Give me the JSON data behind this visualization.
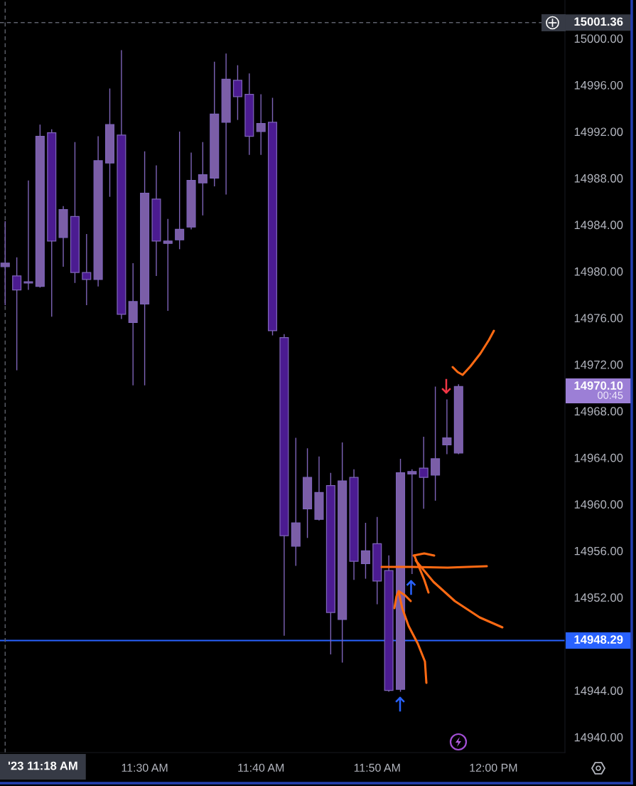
{
  "chart_data": {
    "type": "candlestick",
    "x": [
      11.3,
      11.3167,
      11.3333,
      11.35,
      11.3667,
      11.3833,
      11.4,
      11.4167,
      11.4333,
      11.45,
      11.4667,
      11.4833,
      11.5,
      11.5167,
      11.5333,
      11.55,
      11.5667,
      11.5833,
      11.6,
      11.6167,
      11.6333,
      11.65,
      11.6667,
      11.6833,
      11.7,
      11.7167,
      11.7333,
      11.75,
      11.7667,
      11.7833,
      11.8,
      11.8167,
      11.8333,
      11.85,
      11.8667,
      11.8833,
      11.9,
      11.9167,
      11.9333,
      11.95
    ],
    "ohlc": [
      [
        14980.4,
        14984.3,
        14977.1,
        14980.7
      ],
      [
        14979.6,
        14981.2,
        14971.5,
        14978.4
      ],
      [
        14979.0,
        14987.8,
        14978.4,
        14979.1
      ],
      [
        14978.7,
        14992.6,
        14978.6,
        14991.6
      ],
      [
        14991.9,
        14992.2,
        14976.1,
        14982.6
      ],
      [
        14982.9,
        14985.6,
        14980.4,
        14985.3
      ],
      [
        14984.7,
        14991.1,
        14979.0,
        14979.9
      ],
      [
        14979.9,
        14983.2,
        14977.1,
        14979.3
      ],
      [
        14979.3,
        14991.6,
        14978.7,
        14989.5
      ],
      [
        14989.3,
        14995.7,
        14986.4,
        14992.6
      ],
      [
        14991.7,
        14999.0,
        14975.9,
        14976.3
      ],
      [
        14975.6,
        14980.7,
        14970.2,
        14977.4
      ],
      [
        14977.2,
        14990.3,
        14970.2,
        14986.7
      ],
      [
        14986.2,
        14989.1,
        14979.6,
        14982.6
      ],
      [
        14982.4,
        14984.5,
        14976.6,
        14982.6
      ],
      [
        14982.7,
        14992.0,
        14981.9,
        14983.6
      ],
      [
        14983.8,
        14990.2,
        14983.6,
        14987.8
      ],
      [
        14987.6,
        14991.1,
        14984.8,
        14988.3
      ],
      [
        14988.0,
        14998.0,
        14987.3,
        14993.5
      ],
      [
        14992.8,
        14998.7,
        14986.6,
        14996.5
      ],
      [
        14996.4,
        14997.7,
        14993.0,
        14995.0
      ],
      [
        14995.2,
        14997.0,
        14990.0,
        14991.6
      ],
      [
        14992.0,
        14995.2,
        14990.0,
        14992.7
      ],
      [
        14992.8,
        14994.9,
        14974.5,
        14974.9
      ],
      [
        14974.3,
        14974.6,
        14948.7,
        14957.3
      ],
      [
        14956.4,
        14965.7,
        14954.7,
        14958.4
      ],
      [
        14959.6,
        14964.8,
        14957.1,
        14962.3
      ],
      [
        14958.7,
        14964.1,
        14958.6,
        14961.0
      ],
      [
        14961.6,
        14962.7,
        14947.1,
        14950.7
      ],
      [
        14950.1,
        14965.3,
        14946.4,
        14962.0
      ],
      [
        14962.3,
        14963.0,
        14953.5,
        14955.1
      ],
      [
        14954.9,
        14958.4,
        14953.6,
        14956.0
      ],
      [
        14956.6,
        14958.9,
        14951.4,
        14953.4
      ],
      [
        14954.3,
        14955.6,
        14943.9,
        14944.0
      ],
      [
        14944.1,
        14963.9,
        14943.9,
        14962.7
      ],
      [
        14962.6,
        14963.0,
        14954.0,
        14962.8
      ],
      [
        14963.1,
        14965.8,
        14959.6,
        14962.3
      ],
      [
        14962.5,
        14970.1,
        14960.3,
        14963.9
      ],
      [
        14965.1,
        14969.0,
        14964.3,
        14965.7
      ],
      [
        14964.4,
        14970.3,
        14964.3,
        14970.1
      ]
    ],
    "colors": [
      "#7b5ea7",
      "#4b1b91",
      "#7b5ea7",
      "#7b5ea7",
      "#4b1b91",
      "#7b5ea7",
      "#4b1b91",
      "#4b1b91",
      "#7b5ea7",
      "#7b5ea7",
      "#4b1b91",
      "#7b5ea7",
      "#7b5ea7",
      "#4b1b91",
      "#7b5ea7",
      "#7b5ea7",
      "#7b5ea7",
      "#7b5ea7",
      "#7b5ea7",
      "#7b5ea7",
      "#4b1b91",
      "#4b1b91",
      "#7b5ea7",
      "#4b1b91",
      "#4b1b91",
      "#7b5ea7",
      "#7b5ea7",
      "#7b5ea7",
      "#4b1b91",
      "#7b5ea7",
      "#4b1b91",
      "#7b5ea7",
      "#4b1b91",
      "#4b1b91",
      "#7b5ea7",
      "#7b5ea7",
      "#4b1b91",
      "#7b5ea7",
      "#7b5ea7",
      "#7b5ea7"
    ],
    "color": "#7e64b8",
    "xlim": [
      11.2926,
      12.1025
    ],
    "xticks": [
      {
        "value": 11.5,
        "label": "11:30 AM"
      },
      {
        "value": 11.6667,
        "label": "11:40 AM"
      },
      {
        "value": 11.8333,
        "label": "11:50 AM"
      },
      {
        "value": 12,
        "label": "12:00 PM"
      }
    ],
    "ylim": [
      14938.67,
      15003.3
    ],
    "yticks": [
      {
        "value": 14940,
        "label": "14940.00"
      },
      {
        "value": 14944,
        "label": "14944.00"
      },
      {
        "value": 14952,
        "label": "14952.00"
      },
      {
        "value": 14956,
        "label": "14956.00"
      },
      {
        "value": 14960,
        "label": "14960.00"
      },
      {
        "value": 14964,
        "label": "14964.00"
      },
      {
        "value": 14968,
        "label": "14968.00"
      },
      {
        "value": 14972,
        "label": "14972.00"
      },
      {
        "value": 14976,
        "label": "14976.00"
      },
      {
        "value": 14980,
        "label": "14980.00"
      },
      {
        "value": 14984,
        "label": "14984.00"
      },
      {
        "value": 14988,
        "label": "14988.00"
      },
      {
        "value": 14992,
        "label": "14992.00"
      },
      {
        "value": 14996,
        "label": "14996.00"
      },
      {
        "value": 15000,
        "label": "15000.00"
      }
    ],
    "ref_lines": [
      {
        "axis": "y",
        "value": 14948.29,
        "label": "14948.29",
        "color": "#2962ff",
        "line_style": "solid"
      },
      {
        "axis": "y",
        "value": 15001.36,
        "label": "15001.36",
        "color": "#5d606b",
        "line_style": "dashed"
      },
      {
        "axis": "x",
        "value": 11.3,
        "label": "'23 11:18 AM",
        "color": "#5d606b",
        "line_style": "dashed"
      }
    ],
    "annotations": [
      "14970.10\n00:45"
    ]
  }
}
